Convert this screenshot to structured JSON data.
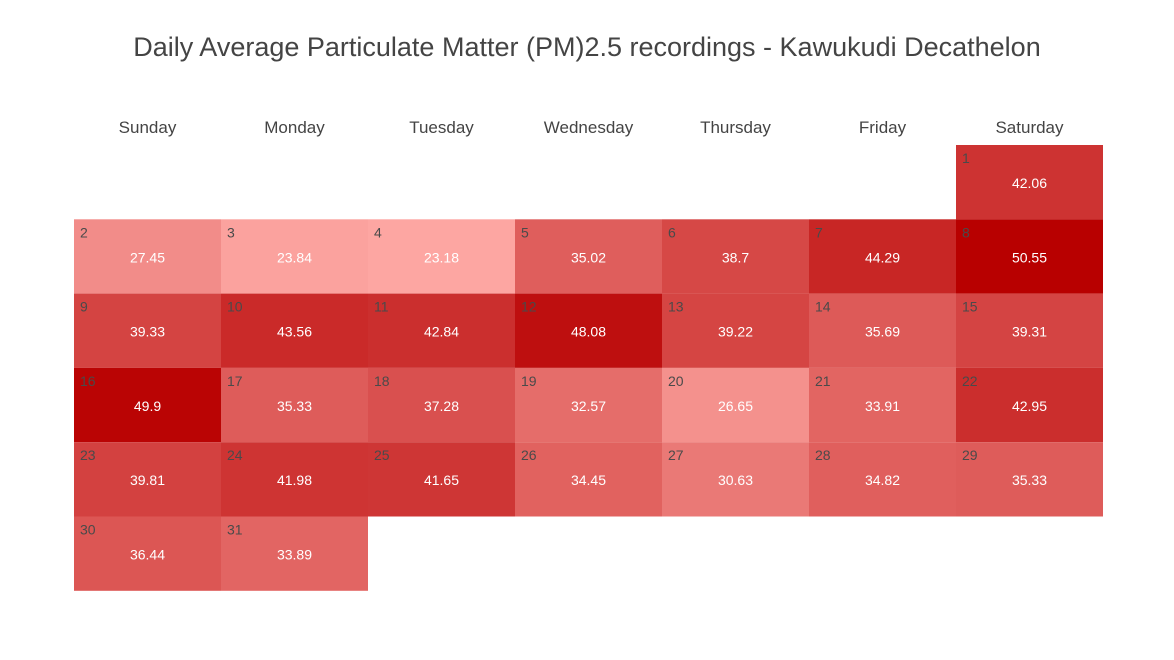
{
  "chart_data": {
    "type": "heatmap",
    "title": "Daily Average Particulate Matter (PM)2.5 recordings - Kawukudi Decathelon",
    "weekdays": [
      "Sunday",
      "Monday",
      "Tuesday",
      "Wednesday",
      "Thursday",
      "Friday",
      "Saturday"
    ],
    "first_weekday_index": 6,
    "days": [
      1,
      2,
      3,
      4,
      5,
      6,
      7,
      8,
      9,
      10,
      11,
      12,
      13,
      14,
      15,
      16,
      17,
      18,
      19,
      20,
      21,
      22,
      23,
      24,
      25,
      26,
      27,
      28,
      29,
      30,
      31
    ],
    "values": [
      42.06,
      27.45,
      23.84,
      23.18,
      35.02,
      38.7,
      44.29,
      50.55,
      39.33,
      43.56,
      42.84,
      48.08,
      39.22,
      35.69,
      39.31,
      49.9,
      35.33,
      37.28,
      32.57,
      26.65,
      33.91,
      42.95,
      39.81,
      41.98,
      41.65,
      34.45,
      30.63,
      34.82,
      35.33,
      36.44,
      33.89
    ],
    "value_labels": [
      "42.06",
      "27.45",
      "23.84",
      "23.18",
      "35.02",
      "38.7",
      "44.29",
      "50.55",
      "39.33",
      "43.56",
      "42.84",
      "48.08",
      "39.22",
      "35.69",
      "39.31",
      "49.9",
      "35.33",
      "37.28",
      "32.57",
      "26.65",
      "33.91",
      "42.95",
      "39.81",
      "41.98",
      "41.65",
      "34.45",
      "30.63",
      "34.82",
      "35.33",
      "36.44",
      "33.89"
    ],
    "colorscale": {
      "low": "#fda6a2",
      "high": "#b80000",
      "min": 23.18,
      "max": 50.55
    },
    "legend": "none",
    "grid": false
  }
}
